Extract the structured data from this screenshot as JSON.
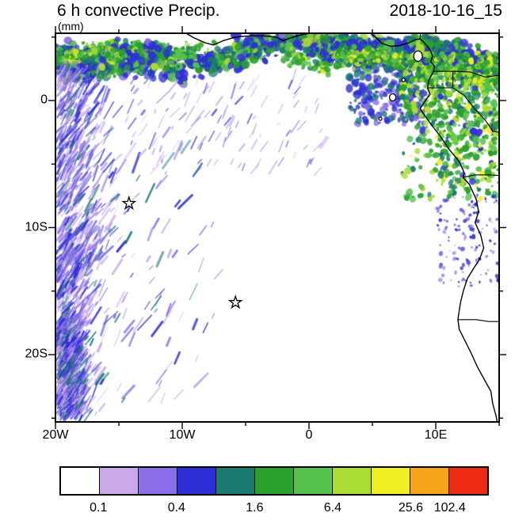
{
  "figure": {
    "title": "6 h convective Precip.",
    "timestamp": "2018-10-16_15",
    "units": "(mm)"
  },
  "chart_data": {
    "type": "heatmap",
    "title": "6 h convective Precip.",
    "units_label": "(mm)",
    "timestamp": "2018-10-16_15",
    "x_axis": {
      "range_deg": [
        -20,
        15
      ],
      "minor_tick_step_deg": 5,
      "ticks": [
        {
          "label": "20W",
          "lon": -20
        },
        {
          "label": "10W",
          "lon": -10
        },
        {
          "label": "0",
          "lon": 0
        },
        {
          "label": "10E",
          "lon": 10
        }
      ]
    },
    "y_axis": {
      "range_deg": [
        -25.3,
        5.3
      ],
      "minor_tick_step_deg": 5,
      "ticks": [
        {
          "label": "0",
          "lat": 0
        },
        {
          "label": "10S",
          "lat": -10
        },
        {
          "label": "20S",
          "lat": -20
        }
      ]
    },
    "colorbar": {
      "orientation": "horizontal",
      "labels": [
        "0.1",
        "0.4",
        "1.6",
        "6.4",
        "25.6",
        "102.4"
      ],
      "label_boundary_index": [
        1,
        3,
        5,
        7,
        9,
        10
      ],
      "cell_colors": [
        "#FFFFFF",
        "#C9A9E9",
        "#8B6FE8",
        "#2F2FD8",
        "#1B7B70",
        "#2AA12A",
        "#58C24E",
        "#AADC32",
        "#EFEF24",
        "#F5A41C",
        "#ED2A14"
      ]
    },
    "markers": [
      {
        "symbol": "open-star",
        "lon": -14.2,
        "lat": -8.1
      },
      {
        "symbol": "open-star",
        "lon": -5.8,
        "lat": -15.9
      }
    ],
    "precip_regions": [
      {
        "area": "equatorial band across top of domain (~5N-1N, 20W-15E)",
        "values_mm": "0.2 - 25.6, patchy"
      },
      {
        "area": "Cameroon/Gabon coastal sector (5E-15E, 5N-5S)",
        "values_mm": "1.6 - 25.6 with isolated brighter cells"
      },
      {
        "area": "scattered streaks offshore SW sector (20W-7W, 2S-25S)",
        "values_mm": "0.1 - 0.8"
      },
      {
        "area": "central and southern interior ocean",
        "values_mm": "~0 (no precip)"
      }
    ]
  }
}
